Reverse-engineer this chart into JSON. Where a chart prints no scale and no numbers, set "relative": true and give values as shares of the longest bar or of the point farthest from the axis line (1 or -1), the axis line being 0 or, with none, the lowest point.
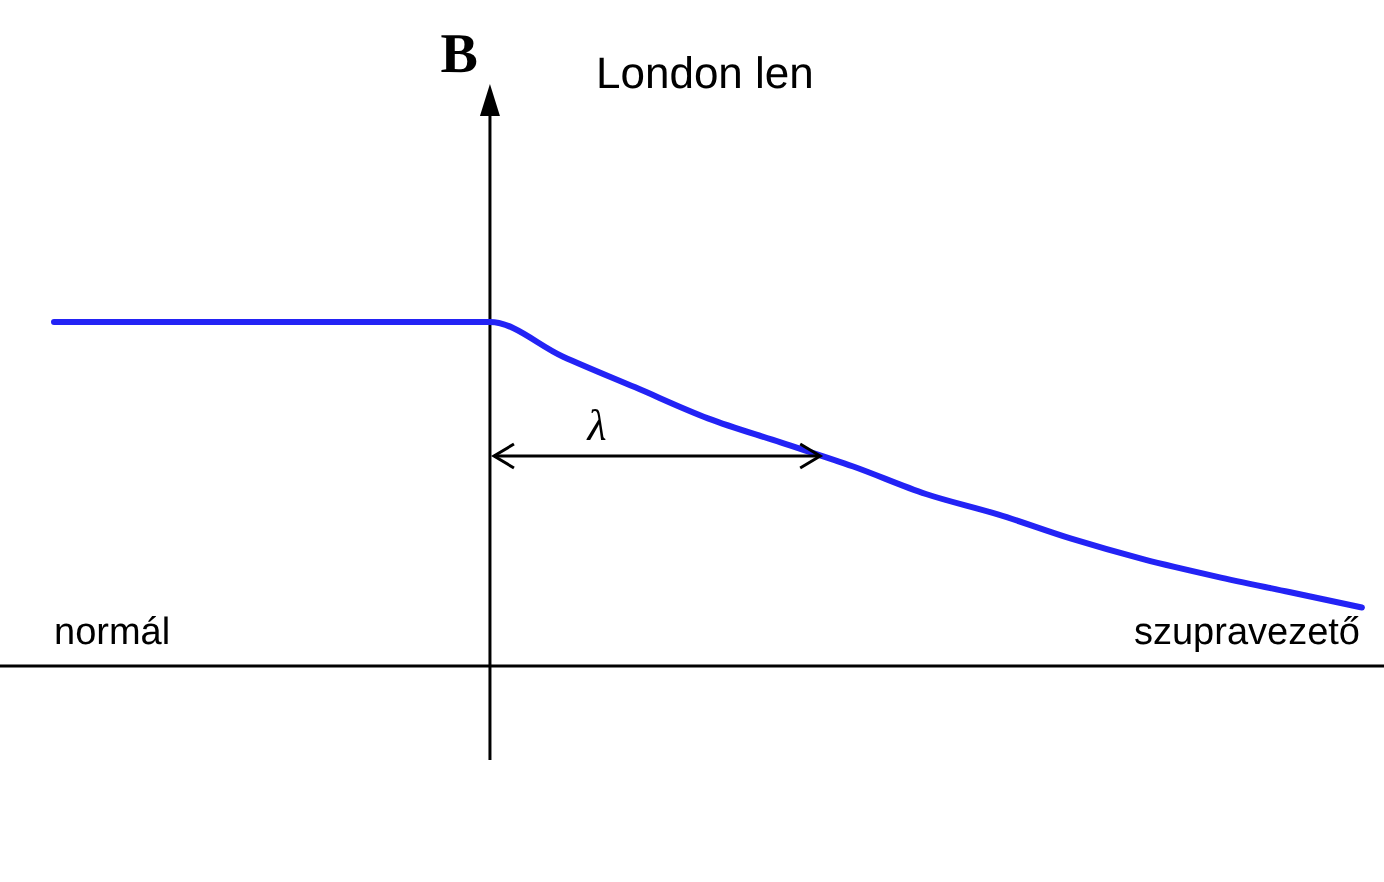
{
  "chart_data": {
    "type": "line",
    "title": "London len",
    "ylabel": "B",
    "relative": true,
    "annotations": [
      "λ",
      "normál",
      "szupravezető"
    ],
    "categories": [
      null,
      null,
      null,
      null,
      null,
      null,
      null,
      null,
      null,
      null,
      null,
      null,
      null,
      null,
      null,
      null,
      null,
      null,
      null
    ],
    "series": [
      {
        "color": "#2323f5",
        "values": [
          1,
          1,
          1,
          1,
          1,
          1,
          1,
          0.9,
          0.81,
          0.72,
          0.65,
          0.58,
          0.5,
          0.44,
          0.37,
          0.31,
          0.26,
          0.215,
          0.17
        ]
      }
    ]
  }
}
